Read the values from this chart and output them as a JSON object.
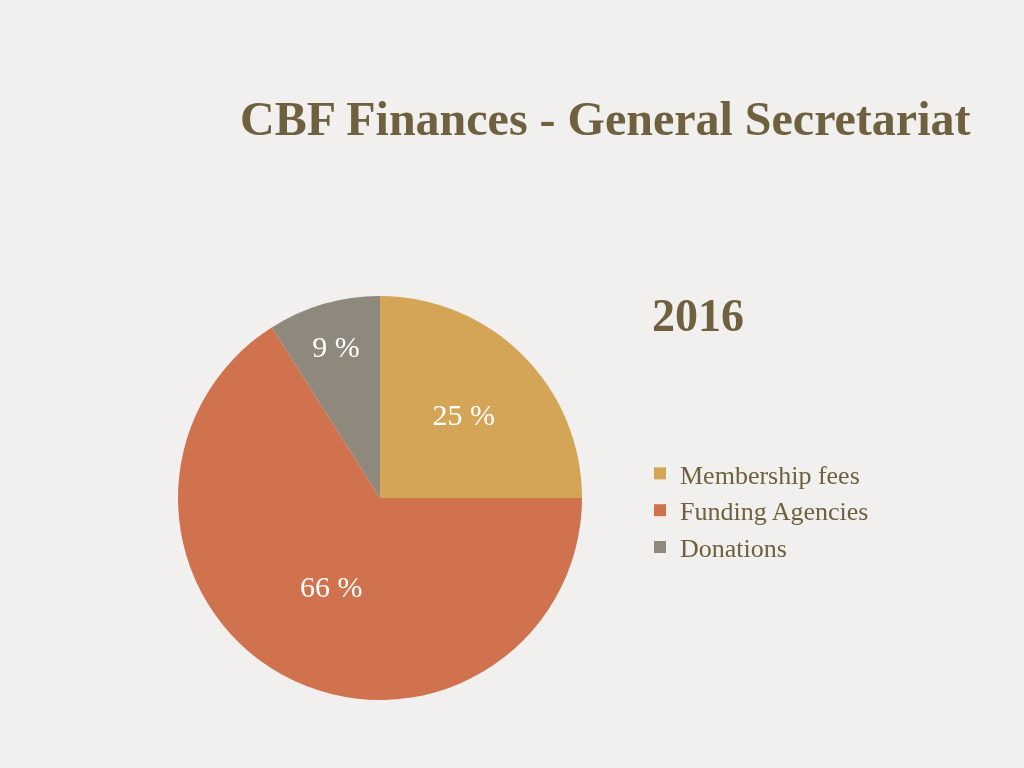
{
  "chart_data": {
    "type": "pie",
    "title": "CBF Finances - General Secretariat",
    "subtitle": "2016",
    "categories": [
      "Membership fees",
      "Funding Agencies",
      "Donations"
    ],
    "values": [
      25,
      66,
      9
    ],
    "colors": [
      "#d4a557",
      "#d0724d",
      "#8f887c"
    ],
    "value_labels": [
      "25 %",
      "66 %",
      "9 %"
    ],
    "legend": "right"
  }
}
